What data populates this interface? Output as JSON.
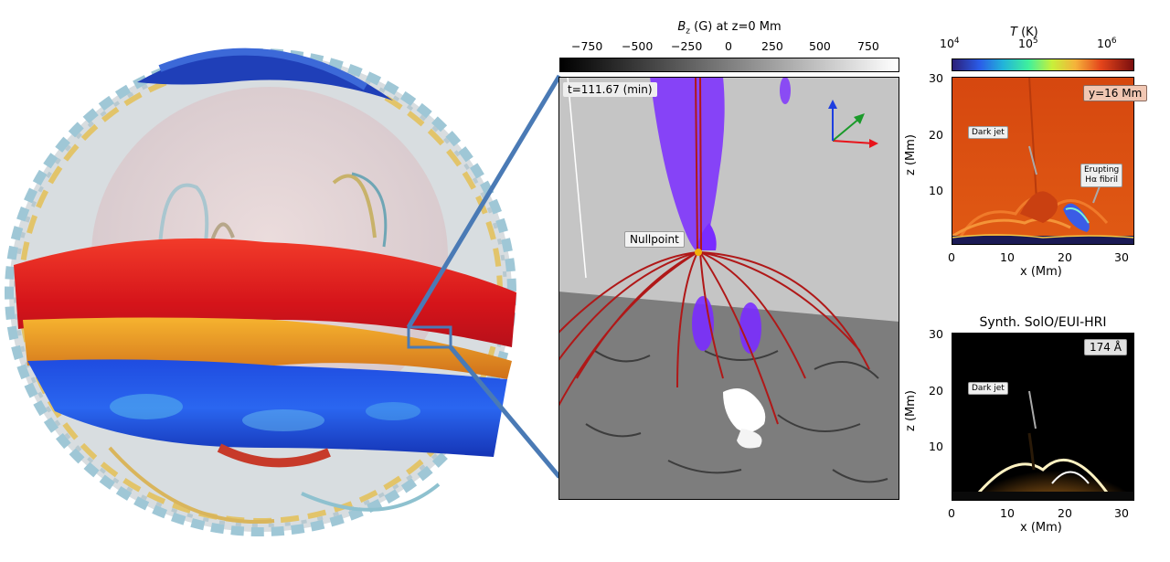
{
  "magnetogram": {
    "colorbar_label_var": "B",
    "colorbar_label_sub": "z",
    "colorbar_label_rest": " (G) at z=0 Mm",
    "colorbar_ticks": [
      "−750",
      "−500",
      "−250",
      "0",
      "250",
      "500",
      "750"
    ],
    "time_label": "t=111.67 (min)",
    "nullpoint_label": "Nullpoint",
    "colors": {
      "fieldline": "#b01818",
      "plasma": "#7a2cff",
      "axis_x": "#e8141b",
      "axis_y": "#1a9a2a",
      "axis_z": "#1d3ee0"
    }
  },
  "temperature_panel": {
    "colorbar_title_var": "T",
    "colorbar_title_rest": " (K)",
    "colorbar_ticks": [
      "10",
      "10",
      "10"
    ],
    "colorbar_tick_exponents": [
      "4",
      "5",
      "6"
    ],
    "slice_label": "y=16 Mm",
    "annotation_dark_jet": "Dark jet",
    "annotation_fibril_line1": "Erupting",
    "annotation_fibril_line2": "Hα fibril",
    "ylabel": "z (Mm)",
    "xlabel": "x (Mm)",
    "yticks": [
      "30",
      "20",
      "10"
    ],
    "xticks": [
      "0",
      "10",
      "20",
      "30"
    ]
  },
  "euv_panel": {
    "title": "Synth. SolO/EUI-HRI",
    "wavelength_label": "174 Å",
    "annotation_dark_jet": "Dark jet",
    "ylabel": "z (Mm)",
    "xlabel": "x (Mm)",
    "yticks": [
      "30",
      "20",
      "10"
    ],
    "xticks": [
      "0",
      "10",
      "20",
      "30"
    ]
  },
  "connector_color": "#4a7ab5"
}
